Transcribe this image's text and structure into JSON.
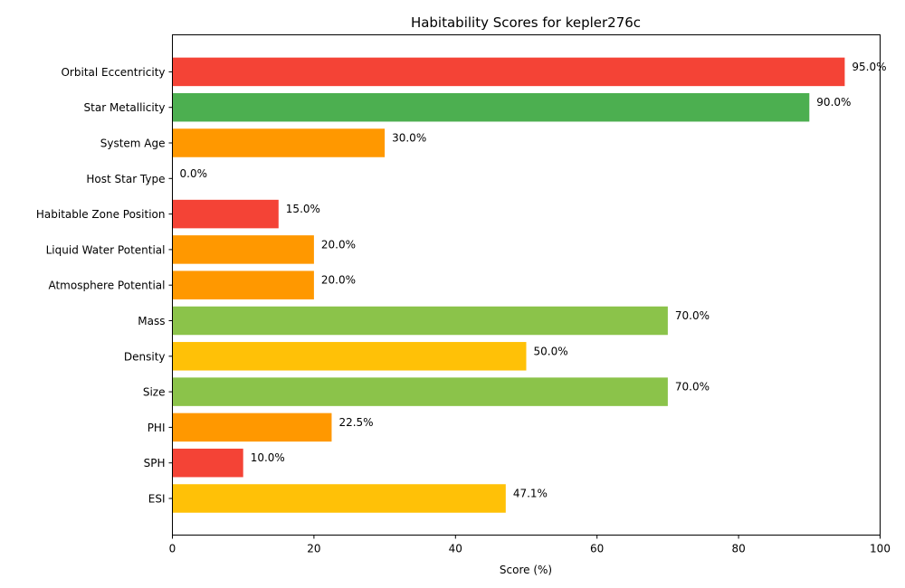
{
  "chart_data": {
    "type": "bar",
    "orientation": "horizontal",
    "title": "Habitability Scores for kepler276c",
    "xlabel": "Score (%)",
    "ylabel": "",
    "xlim": [
      0,
      100
    ],
    "x_ticks": [
      "0",
      "20",
      "40",
      "60",
      "80",
      "100"
    ],
    "grid": false,
    "categories": [
      "ESI",
      "SPH",
      "PHI",
      "Size",
      "Density",
      "Mass",
      "Atmosphere Potential",
      "Liquid Water Potential",
      "Habitable Zone Position",
      "Host Star Type",
      "System Age",
      "Star Metallicity",
      "Orbital Eccentricity"
    ],
    "values": [
      47.1,
      10.0,
      22.5,
      70.0,
      50.0,
      70.0,
      20.0,
      20.0,
      15.0,
      0.0,
      30.0,
      90.0,
      95.0
    ],
    "value_labels": [
      "47.1%",
      "10.0%",
      "22.5%",
      "70.0%",
      "50.0%",
      "70.0%",
      "20.0%",
      "20.0%",
      "15.0%",
      "0.0%",
      "30.0%",
      "90.0%",
      "95.0%"
    ],
    "colors": [
      "#FFC107",
      "#F44336",
      "#FF9800",
      "#8BC34A",
      "#FFC107",
      "#8BC34A",
      "#FF9800",
      "#FF9800",
      "#F44336",
      "#F44336",
      "#FF9800",
      "#4CAF50",
      "#F44336"
    ]
  }
}
